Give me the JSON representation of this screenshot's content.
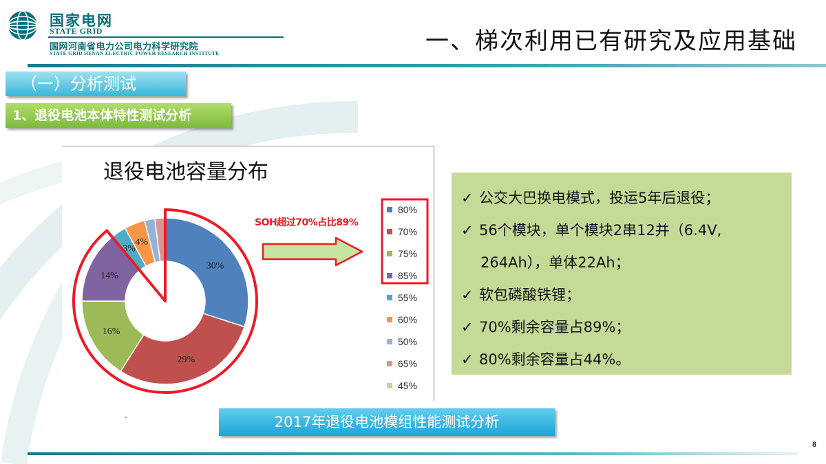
{
  "header": {
    "logo_cn": "国家电网",
    "logo_en": "STATE GRID",
    "institute_cn": "国网河南省电力公司电力科学研究院",
    "institute_en": "STATE GRID HENAN ELECTRIC POWER RESEARCH INSTITUTE",
    "slide_title": "一、梯次利用已有研究及应用基础"
  },
  "section_tab": "（一）分析测试",
  "subsection_tab": "1、退役电池本体特性测试分析",
  "chart_data": {
    "type": "pie",
    "variant": "donut",
    "title": "退役电池容量分布",
    "slices": [
      {
        "label": "80%",
        "value": 30,
        "data_label": "30%",
        "color": "#4f81bd"
      },
      {
        "label": "70%",
        "value": 29,
        "data_label": "29%",
        "color": "#c0504d"
      },
      {
        "label": "75%",
        "value": 16,
        "data_label": "16%",
        "color": "#9bbb59"
      },
      {
        "label": "85%",
        "value": 14,
        "data_label": "14%",
        "color": "#8064a2"
      },
      {
        "label": "55%",
        "value": 3,
        "data_label": "3%",
        "color": "#4bacc6"
      },
      {
        "label": "60%",
        "value": 4,
        "data_label": "4%",
        "color": "#f79646"
      },
      {
        "label": "50%",
        "value": 2,
        "data_label": "",
        "color": "#95b3d7"
      },
      {
        "label": "65%",
        "value": 2,
        "data_label": "",
        "color": "#d99694"
      },
      {
        "label": "45%",
        "value": 0,
        "data_label": "",
        "color": "#c3d69b"
      }
    ],
    "legend_position": "right",
    "annotation": "SOH超过70%占比89%"
  },
  "info_lines": [
    {
      "text": "公交大巴换电模式，投运5年后退役；",
      "check": true
    },
    {
      "text": "56个模块，单个模块2串12并（6.4V,",
      "check": true
    },
    {
      "text": "264Ah），单体22Ah；",
      "check": false
    },
    {
      "text": "软包磷酸铁锂；",
      "check": true
    },
    {
      "text": "70%剩余容量占89%；",
      "check": true
    },
    {
      "text": "80%剩余容量占44%。",
      "check": true
    }
  ],
  "check_glyph": "✓",
  "caption": "2017年退役电池模组性能测试分析",
  "page_number": "8",
  "colors": {
    "highlight_red": "#ee1b24",
    "brand_teal": "#0a6f7a",
    "arrow_fill": "#c6e5a0"
  }
}
